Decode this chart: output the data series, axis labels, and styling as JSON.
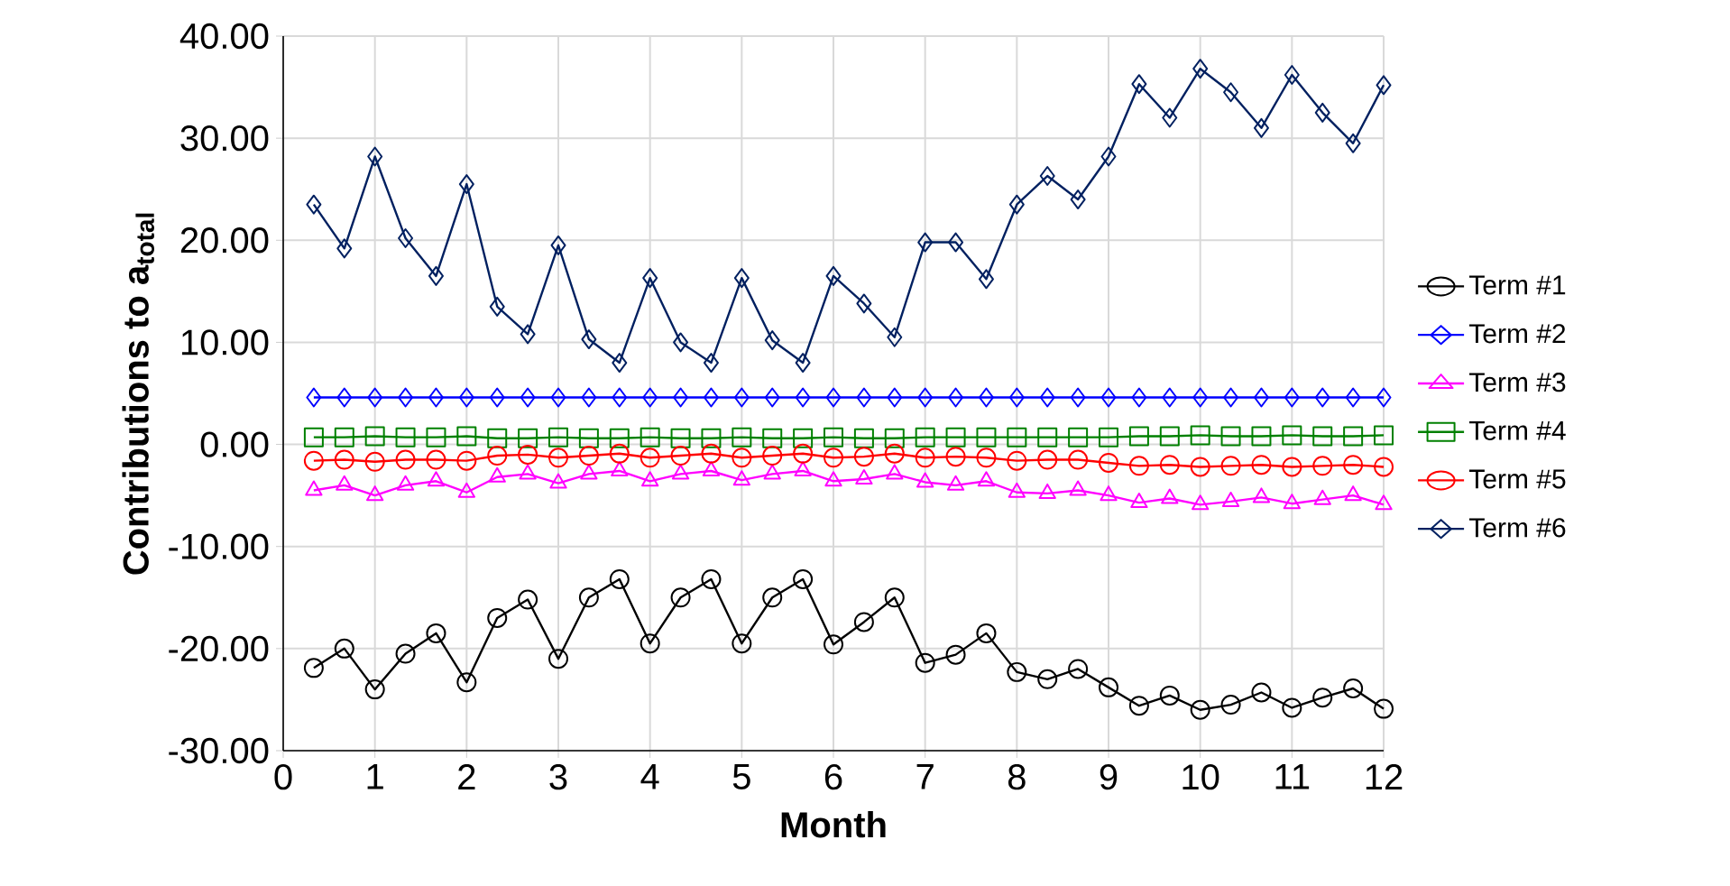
{
  "chart_data": {
    "type": "line",
    "xlabel": "Month",
    "ylabel": "Contributions to a$_{total}$",
    "x": [
      0.3333,
      0.6667,
      1,
      1.3333,
      1.6667,
      2,
      2.3333,
      2.6667,
      3,
      3.3333,
      3.6667,
      4,
      4.3333,
      4.6667,
      5,
      5.3333,
      5.6667,
      6,
      6.3333,
      6.6667,
      7,
      7.3333,
      7.6667,
      8,
      8.3333,
      8.6667,
      9,
      9.3333,
      9.6667,
      10,
      10.3333,
      10.6667,
      11,
      11.3333,
      11.6667,
      12
    ],
    "xlim": [
      0,
      12
    ],
    "xticks": [
      0,
      1,
      2,
      3,
      4,
      5,
      6,
      7,
      8,
      9,
      10,
      11,
      12
    ],
    "ylim": [
      -30,
      40
    ],
    "yticks": [
      {
        "value": -30,
        "label": "-30.00"
      },
      {
        "value": -20,
        "label": "-20.00"
      },
      {
        "value": -10,
        "label": "-10.00"
      },
      {
        "value": 0,
        "label": "0.00"
      },
      {
        "value": 10,
        "label": "10.00"
      },
      {
        "value": 20,
        "label": "20.00"
      },
      {
        "value": 30,
        "label": "30.00"
      },
      {
        "value": 40,
        "label": "40.00"
      }
    ],
    "grid": true,
    "legend": "right",
    "line_style": "solid",
    "series": [
      {
        "name": "Term #1",
        "color": "#000000",
        "marker": "circle",
        "values": [
          -21.9,
          -20.0,
          -24.0,
          -20.5,
          -18.5,
          -23.3,
          -17.0,
          -15.2,
          -21.0,
          -15.0,
          -13.2,
          -19.5,
          -15.0,
          -13.2,
          -19.5,
          -15.0,
          -13.2,
          -19.6,
          -17.4,
          -15.0,
          -21.4,
          -20.6,
          -18.5,
          -22.3,
          -23.0,
          -22.0,
          -23.8,
          -25.6,
          -24.6,
          -26.0,
          -25.5,
          -24.3,
          -25.8,
          -24.8,
          -23.9,
          -25.9
        ]
      },
      {
        "name": "Term #2",
        "color": "#0000ff",
        "marker": "diamond",
        "values": [
          4.6,
          4.6,
          4.6,
          4.6,
          4.6,
          4.6,
          4.6,
          4.6,
          4.6,
          4.6,
          4.6,
          4.6,
          4.6,
          4.6,
          4.6,
          4.6,
          4.6,
          4.6,
          4.6,
          4.6,
          4.6,
          4.6,
          4.6,
          4.6,
          4.6,
          4.6,
          4.6,
          4.6,
          4.6,
          4.6,
          4.6,
          4.6,
          4.6,
          4.6,
          4.6,
          4.6
        ]
      },
      {
        "name": "Term #3",
        "color": "#ff00ff",
        "marker": "triangle",
        "values": [
          -4.5,
          -4.0,
          -5.0,
          -4.0,
          -3.6,
          -4.7,
          -3.2,
          -2.9,
          -3.8,
          -2.9,
          -2.6,
          -3.6,
          -2.9,
          -2.6,
          -3.5,
          -2.9,
          -2.6,
          -3.6,
          -3.4,
          -2.9,
          -3.7,
          -4.0,
          -3.6,
          -4.7,
          -4.8,
          -4.5,
          -5.0,
          -5.7,
          -5.3,
          -5.9,
          -5.6,
          -5.2,
          -5.8,
          -5.4,
          -5.0,
          -5.9
        ]
      },
      {
        "name": "Term #4",
        "color": "#008000",
        "marker": "square",
        "values": [
          0.7,
          0.7,
          0.8,
          0.7,
          0.7,
          0.8,
          0.6,
          0.6,
          0.7,
          0.6,
          0.6,
          0.7,
          0.6,
          0.6,
          0.7,
          0.6,
          0.6,
          0.7,
          0.6,
          0.6,
          0.7,
          0.7,
          0.7,
          0.7,
          0.7,
          0.7,
          0.7,
          0.8,
          0.8,
          0.9,
          0.8,
          0.8,
          0.9,
          0.8,
          0.8,
          0.9
        ]
      },
      {
        "name": "Term #5",
        "color": "#ff0000",
        "marker": "circle",
        "values": [
          -1.6,
          -1.5,
          -1.7,
          -1.5,
          -1.5,
          -1.6,
          -1.1,
          -1.0,
          -1.3,
          -1.1,
          -0.9,
          -1.3,
          -1.1,
          -0.9,
          -1.3,
          -1.1,
          -0.9,
          -1.3,
          -1.2,
          -0.9,
          -1.3,
          -1.2,
          -1.3,
          -1.6,
          -1.5,
          -1.5,
          -1.8,
          -2.1,
          -2.0,
          -2.2,
          -2.1,
          -2.0,
          -2.2,
          -2.1,
          -2.0,
          -2.2
        ]
      },
      {
        "name": "Term #6",
        "color": "#002060",
        "marker": "diamond",
        "values": [
          23.5,
          19.2,
          28.2,
          20.2,
          16.5,
          25.5,
          13.5,
          10.8,
          19.5,
          10.3,
          8.0,
          16.3,
          10.0,
          8.0,
          16.3,
          10.2,
          8.0,
          16.5,
          13.8,
          10.5,
          19.8,
          19.8,
          16.2,
          23.5,
          26.3,
          24.0,
          28.2,
          35.3,
          32.0,
          36.8,
          34.5,
          31.0,
          36.2,
          32.5,
          29.5,
          35.2
        ]
      }
    ]
  }
}
